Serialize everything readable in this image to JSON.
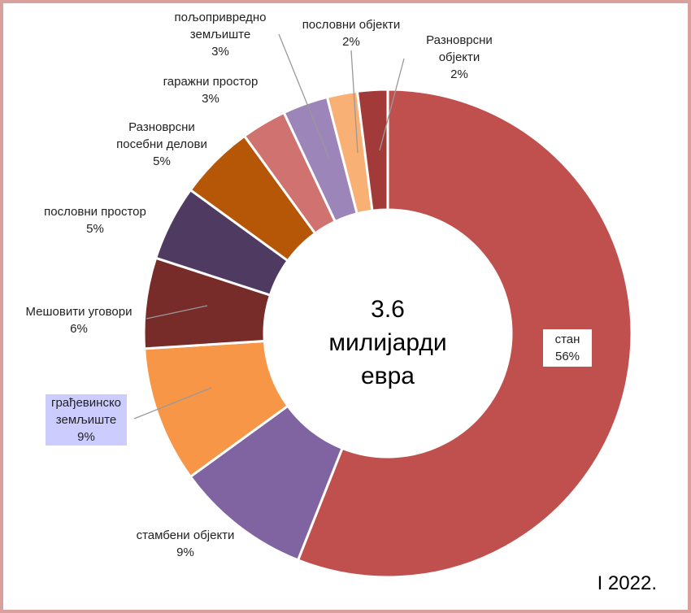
{
  "chart_data": {
    "type": "donut",
    "center_text": "3.6 милијарди евра",
    "footnote": "I 2022.",
    "categories": [
      "стан",
      "стамбени објекти",
      "грађевинско земљиште",
      "Мешовити уговори",
      "пословни простор",
      "Разноврсни посебни делови",
      "гаражни простор",
      "пољопривредно земљиште",
      "пословни објекти",
      "Разноврсни објекти"
    ],
    "values": [
      56,
      9,
      9,
      6,
      5,
      5,
      3,
      3,
      2,
      2
    ],
    "value_labels": [
      "56%",
      "9%",
      "9%",
      "6%",
      "5%",
      "5%",
      "3%",
      "3%",
      "2%",
      "2%"
    ],
    "colors": [
      "#c0504d",
      "#8064a2",
      "#f79646",
      "#772c2a",
      "#4f3b62",
      "#b65708",
      "#d07270",
      "#9c85b8",
      "#f9b074",
      "#a33a3a"
    ]
  }
}
